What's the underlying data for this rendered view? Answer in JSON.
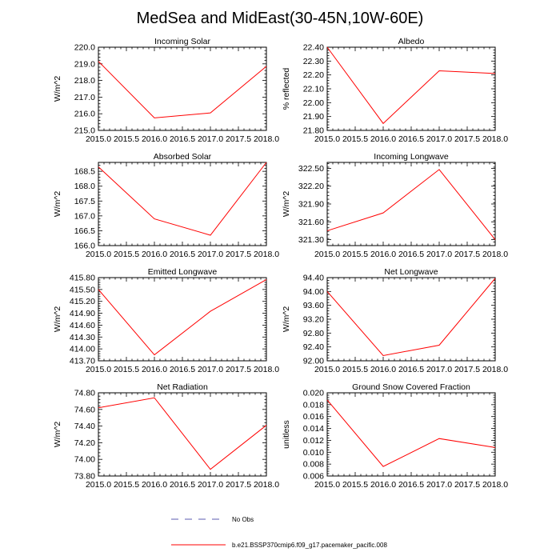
{
  "page": {
    "title": "MedSea and MidEast(30-45N,10W-60E)"
  },
  "legend": {
    "entries": [
      {
        "label": "No Obs",
        "color": "#5b5bb0",
        "dash": "dashed"
      },
      {
        "label": "b.e21.BSSP370cmip6.f09_g17.pacemaker_pacific.008",
        "color": "#ff0000",
        "dash": "solid"
      }
    ]
  },
  "chart_data": [
    {
      "type": "line",
      "title": "Incoming Solar",
      "xlabel": "",
      "ylabel": "W/m^2",
      "xlim": [
        2015.0,
        2018.0
      ],
      "ylim": [
        215.0,
        220.0
      ],
      "xticks": [
        "2015.0",
        "2015.5",
        "2016.0",
        "2016.5",
        "2017.0",
        "2017.5",
        "2018.0"
      ],
      "yticks": [
        "215.0",
        "216.0",
        "217.0",
        "218.0",
        "219.0",
        "220.0"
      ],
      "series": [
        {
          "name": "b.e21.BSSP370cmip6.f09_g17.pacemaker_pacific.008",
          "color": "#ff0000",
          "x": [
            2015.0,
            2016.0,
            2017.0,
            2018.0
          ],
          "y": [
            219.15,
            215.75,
            216.05,
            218.85
          ]
        }
      ]
    },
    {
      "type": "line",
      "title": "Albedo",
      "xlabel": "",
      "ylabel": "% reflected",
      "xlim": [
        2015.0,
        2018.0
      ],
      "ylim": [
        21.8,
        22.4
      ],
      "xticks": [
        "2015.0",
        "2015.5",
        "2016.0",
        "2016.5",
        "2017.0",
        "2017.5",
        "2018.0"
      ],
      "yticks": [
        "21.80",
        "21.90",
        "22.00",
        "22.10",
        "22.20",
        "22.30",
        "22.40"
      ],
      "series": [
        {
          "name": "b.e21.BSSP370cmip6.f09_g17.pacemaker_pacific.008",
          "color": "#ff0000",
          "x": [
            2015.0,
            2016.0,
            2017.0,
            2018.0
          ],
          "y": [
            22.4,
            21.85,
            22.23,
            22.21
          ]
        }
      ]
    },
    {
      "type": "line",
      "title": "Absorbed Solar",
      "xlabel": "",
      "ylabel": "W/m^2",
      "xlim": [
        2015.0,
        2018.0
      ],
      "ylim": [
        166.0,
        168.8
      ],
      "xticks": [
        "2015.0",
        "2015.5",
        "2016.0",
        "2016.5",
        "2017.0",
        "2017.5",
        "2018.0"
      ],
      "yticks": [
        "166.0",
        "166.5",
        "167.0",
        "167.5",
        "168.0",
        "168.5"
      ],
      "series": [
        {
          "name": "b.e21.BSSP370cmip6.f09_g17.pacemaker_pacific.008",
          "color": "#ff0000",
          "x": [
            2015.0,
            2016.0,
            2017.0,
            2018.0
          ],
          "y": [
            168.65,
            166.9,
            166.35,
            168.8
          ]
        }
      ]
    },
    {
      "type": "line",
      "title": "Incoming Longwave",
      "xlabel": "",
      "ylabel": "W/m^2",
      "xlim": [
        2015.0,
        2018.0
      ],
      "ylim": [
        321.2,
        322.6
      ],
      "xticks": [
        "2015.0",
        "2015.5",
        "2016.0",
        "2016.5",
        "2017.0",
        "2017.5",
        "2018.0"
      ],
      "yticks": [
        "321.30",
        "321.60",
        "321.90",
        "322.20",
        "322.50"
      ],
      "series": [
        {
          "name": "b.e21.BSSP370cmip6.f09_g17.pacemaker_pacific.008",
          "color": "#ff0000",
          "x": [
            2015.0,
            2016.0,
            2017.0,
            2018.0
          ],
          "y": [
            321.45,
            321.75,
            322.48,
            321.3
          ]
        }
      ]
    },
    {
      "type": "line",
      "title": "Emitted Longwave",
      "xlabel": "",
      "ylabel": "W/m^2",
      "xlim": [
        2015.0,
        2018.0
      ],
      "ylim": [
        413.7,
        415.8
      ],
      "xticks": [
        "2015.0",
        "2015.5",
        "2016.0",
        "2016.5",
        "2017.0",
        "2017.5",
        "2018.0"
      ],
      "yticks": [
        "413.70",
        "414.00",
        "414.30",
        "414.60",
        "414.90",
        "415.20",
        "415.50",
        "415.80"
      ],
      "series": [
        {
          "name": "b.e21.BSSP370cmip6.f09_g17.pacemaker_pacific.008",
          "color": "#ff0000",
          "x": [
            2015.0,
            2016.0,
            2017.0,
            2018.0
          ],
          "y": [
            415.5,
            413.85,
            414.95,
            415.75
          ]
        }
      ]
    },
    {
      "type": "line",
      "title": "Net Longwave",
      "xlabel": "",
      "ylabel": "W/m^2",
      "xlim": [
        2015.0,
        2018.0
      ],
      "ylim": [
        92.0,
        94.4
      ],
      "xticks": [
        "2015.0",
        "2015.5",
        "2016.0",
        "2016.5",
        "2017.0",
        "2017.5",
        "2018.0"
      ],
      "yticks": [
        "92.00",
        "92.40",
        "92.80",
        "93.20",
        "93.60",
        "94.00",
        "94.40"
      ],
      "series": [
        {
          "name": "b.e21.BSSP370cmip6.f09_g17.pacemaker_pacific.008",
          "color": "#ff0000",
          "x": [
            2015.0,
            2016.0,
            2017.0,
            2018.0
          ],
          "y": [
            94.0,
            92.15,
            92.45,
            94.38
          ]
        }
      ]
    },
    {
      "type": "line",
      "title": "Net Radiation",
      "xlabel": "",
      "ylabel": "W/m^2",
      "xlim": [
        2015.0,
        2018.0
      ],
      "ylim": [
        73.8,
        74.8
      ],
      "xticks": [
        "2015.0",
        "2015.5",
        "2016.0",
        "2016.5",
        "2017.0",
        "2017.5",
        "2018.0"
      ],
      "yticks": [
        "73.80",
        "74.00",
        "74.20",
        "74.40",
        "74.60",
        "74.80"
      ],
      "series": [
        {
          "name": "b.e21.BSSP370cmip6.f09_g17.pacemaker_pacific.008",
          "color": "#ff0000",
          "x": [
            2015.0,
            2016.0,
            2017.0,
            2018.0
          ],
          "y": [
            74.62,
            74.74,
            73.88,
            74.41
          ]
        }
      ]
    },
    {
      "type": "line",
      "title": "Ground Snow Covered Fraction",
      "xlabel": "",
      "ylabel": "unitless",
      "xlim": [
        2015.0,
        2018.0
      ],
      "ylim": [
        0.006,
        0.02
      ],
      "xticks": [
        "2015.0",
        "2015.5",
        "2016.0",
        "2016.5",
        "2017.0",
        "2017.5",
        "2018.0"
      ],
      "yticks": [
        "0.006",
        "0.008",
        "0.010",
        "0.012",
        "0.014",
        "0.016",
        "0.018",
        "0.020"
      ],
      "series": [
        {
          "name": "b.e21.BSSP370cmip6.f09_g17.pacemaker_pacific.008",
          "color": "#ff0000",
          "x": [
            2015.0,
            2016.0,
            2017.0,
            2018.0
          ],
          "y": [
            0.0188,
            0.0076,
            0.0123,
            0.0108
          ]
        }
      ]
    }
  ]
}
